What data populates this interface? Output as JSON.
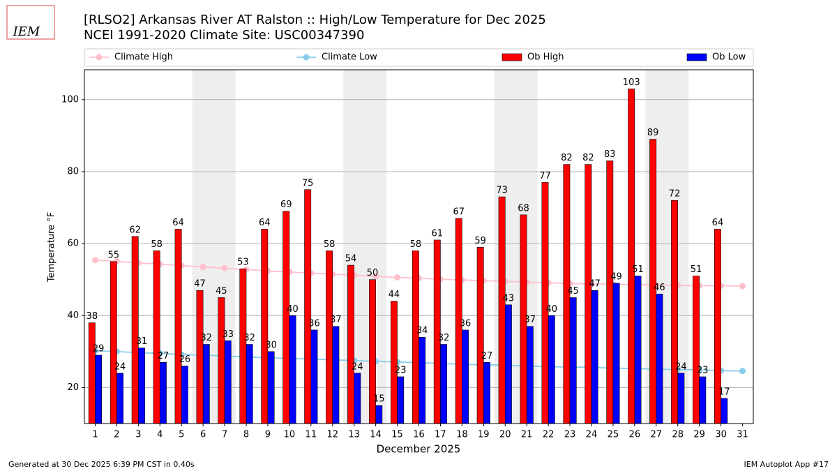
{
  "chart_data": {
    "type": "bar",
    "title": "[RLSO2] Arkansas River  AT Ralston :: High/Low Temperature for Dec 2025",
    "subtitle": "NCEI 1991-2020 Climate Site: USC00347390",
    "logo_text": "IEM",
    "xlabel": "December 2025",
    "ylabel": "Temperature °F",
    "footer_left": "Generated at 30 Dec 2025 6:39 PM CST in 0.40s",
    "footer_right": "IEM Autoplot App #17",
    "categories": [
      "1",
      "2",
      "3",
      "4",
      "5",
      "6",
      "7",
      "8",
      "9",
      "10",
      "11",
      "12",
      "13",
      "14",
      "15",
      "16",
      "17",
      "18",
      "19",
      "20",
      "21",
      "22",
      "23",
      "24",
      "25",
      "26",
      "27",
      "28",
      "29",
      "30",
      "31"
    ],
    "shaded_categories": [
      "6",
      "7",
      "13",
      "14",
      "20",
      "21",
      "27",
      "28"
    ],
    "series": [
      {
        "name": "Climate High",
        "type": "line",
        "color": "#ffc0cb",
        "values": [
          55.4,
          55.1,
          54.6,
          54.3,
          53.9,
          53.5,
          53.2,
          52.8,
          52.4,
          52.1,
          51.8,
          51.5,
          51.2,
          50.9,
          50.6,
          50.4,
          50.1,
          49.9,
          49.7,
          49.5,
          49.3,
          49.1,
          48.9,
          48.8,
          48.7,
          48.6,
          48.5,
          48.4,
          48.3,
          48.3,
          48.2
        ]
      },
      {
        "name": "Climate Low",
        "type": "line",
        "color": "#87ceeb",
        "values": [
          30.2,
          30.0,
          29.7,
          29.5,
          29.2,
          29.0,
          28.8,
          28.5,
          28.3,
          28.1,
          27.9,
          27.7,
          27.5,
          27.3,
          27.1,
          26.9,
          26.7,
          26.5,
          26.3,
          26.2,
          26.0,
          25.8,
          25.7,
          25.6,
          25.4,
          25.3,
          25.1,
          25.0,
          24.9,
          24.7,
          24.6
        ]
      },
      {
        "name": "Ob High",
        "type": "bar",
        "color": "#ff0000",
        "values": [
          38,
          55,
          62,
          58,
          64,
          47,
          45,
          53,
          64,
          69,
          75,
          58,
          54,
          50,
          44,
          58,
          61,
          67,
          59,
          73,
          68,
          77,
          82,
          82,
          83,
          103,
          89,
          72,
          51,
          64,
          null
        ]
      },
      {
        "name": "Ob Low",
        "type": "bar",
        "color": "#0000ff",
        "values": [
          29,
          24,
          31,
          27,
          26,
          32,
          33,
          32,
          30,
          40,
          36,
          37,
          24,
          15,
          23,
          34,
          32,
          36,
          27,
          43,
          37,
          40,
          45,
          47,
          49,
          51,
          46,
          24,
          23,
          17,
          null
        ]
      }
    ],
    "ylim": [
      10,
      108.3
    ],
    "yticks": [
      20,
      40,
      60,
      80,
      100
    ],
    "grid": true,
    "legend": "top"
  }
}
